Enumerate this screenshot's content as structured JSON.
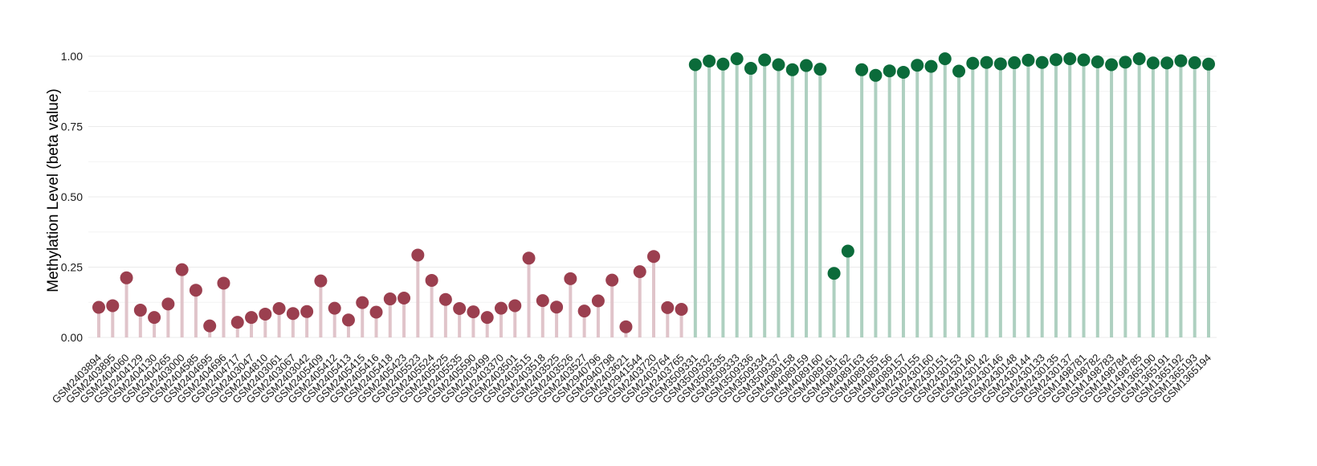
{
  "chart_data": {
    "type": "lollipop",
    "title": "",
    "xlabel": "",
    "ylabel": "Methylation Level (beta value)",
    "ylim": [
      0,
      1.0
    ],
    "yticks": [
      0.0,
      0.25,
      0.5,
      0.75,
      1.0
    ],
    "ytick_labels": [
      "0.00",
      "0.25",
      "0.50",
      "0.75",
      "1.00"
    ],
    "grid": true,
    "legend": "none",
    "colors": {
      "low_point": "#9b3f4f",
      "low_stem": "#e0c4ca",
      "high_point": "#0b6b3a",
      "high_stem": "#aed0c0",
      "grid": "#ebebeb"
    },
    "samples": [
      "GSM2403894",
      "GSM2403895",
      "GSM2404060",
      "GSM2404129",
      "GSM2404130",
      "GSM2404265",
      "GSM2403000",
      "GSM2404585",
      "GSM2404695",
      "GSM2404696",
      "GSM2404717",
      "GSM2403047",
      "GSM2404810",
      "GSM2403061",
      "GSM2403067",
      "GSM2403042",
      "GSM2405409",
      "GSM2405412",
      "GSM2405413",
      "GSM2405415",
      "GSM2405416",
      "GSM2405418",
      "GSM2405423",
      "GSM2405523",
      "GSM2405524",
      "GSM2405525",
      "GSM2405535",
      "GSM2405590",
      "GSM2403499",
      "GSM2403370",
      "GSM2403501",
      "GSM2403515",
      "GSM2403518",
      "GSM2403525",
      "GSM2403526",
      "GSM2403527",
      "GSM2940796",
      "GSM2940798",
      "GSM2403621",
      "GSM2941544",
      "GSM2403720",
      "GSM2403764",
      "GSM2403765",
      "GSM3509331",
      "GSM3509332",
      "GSM3509335",
      "GSM3509333",
      "GSM3509336",
      "GSM3509334",
      "GSM3509337",
      "GSM4089158",
      "GSM4089159",
      "GSM4089160",
      "GSM4089161",
      "GSM4089162",
      "GSM4089163",
      "GSM4089155",
      "GSM4089156",
      "GSM4089157",
      "GSM2430155",
      "GSM2430160",
      "GSM2430151",
      "GSM2430153",
      "GSM2430140",
      "GSM2430142",
      "GSM2430146",
      "GSM2430148",
      "GSM2430144",
      "GSM2430133",
      "GSM2430135",
      "GSM2430137",
      "GSM1498781",
      "GSM1498782",
      "GSM1498783",
      "GSM1498784",
      "GSM1498785",
      "GSM1365190",
      "GSM1365191",
      "GSM1365192",
      "GSM1365193",
      "GSM1365194"
    ],
    "values": [
      0.107,
      0.113,
      0.212,
      0.097,
      0.071,
      0.119,
      0.241,
      0.168,
      0.041,
      0.193,
      0.054,
      0.071,
      0.083,
      0.103,
      0.085,
      0.092,
      0.201,
      0.104,
      0.062,
      0.124,
      0.09,
      0.137,
      0.14,
      0.293,
      0.203,
      0.135,
      0.103,
      0.091,
      0.071,
      0.104,
      0.113,
      0.282,
      0.131,
      0.108,
      0.209,
      0.094,
      0.13,
      0.204,
      0.038,
      0.234,
      0.288,
      0.106,
      0.1,
      0.97,
      0.983,
      0.972,
      0.991,
      0.957,
      0.987,
      0.97,
      0.952,
      0.967,
      0.954,
      0.228,
      0.307,
      0.952,
      0.932,
      0.948,
      0.943,
      0.968,
      0.964,
      0.991,
      0.947,
      0.975,
      0.978,
      0.973,
      0.977,
      0.986,
      0.978,
      0.988,
      0.991,
      0.987,
      0.98,
      0.97,
      0.979,
      0.991,
      0.976,
      0.976,
      0.984,
      0.977,
      0.972
    ],
    "group_split_index": 43
  }
}
